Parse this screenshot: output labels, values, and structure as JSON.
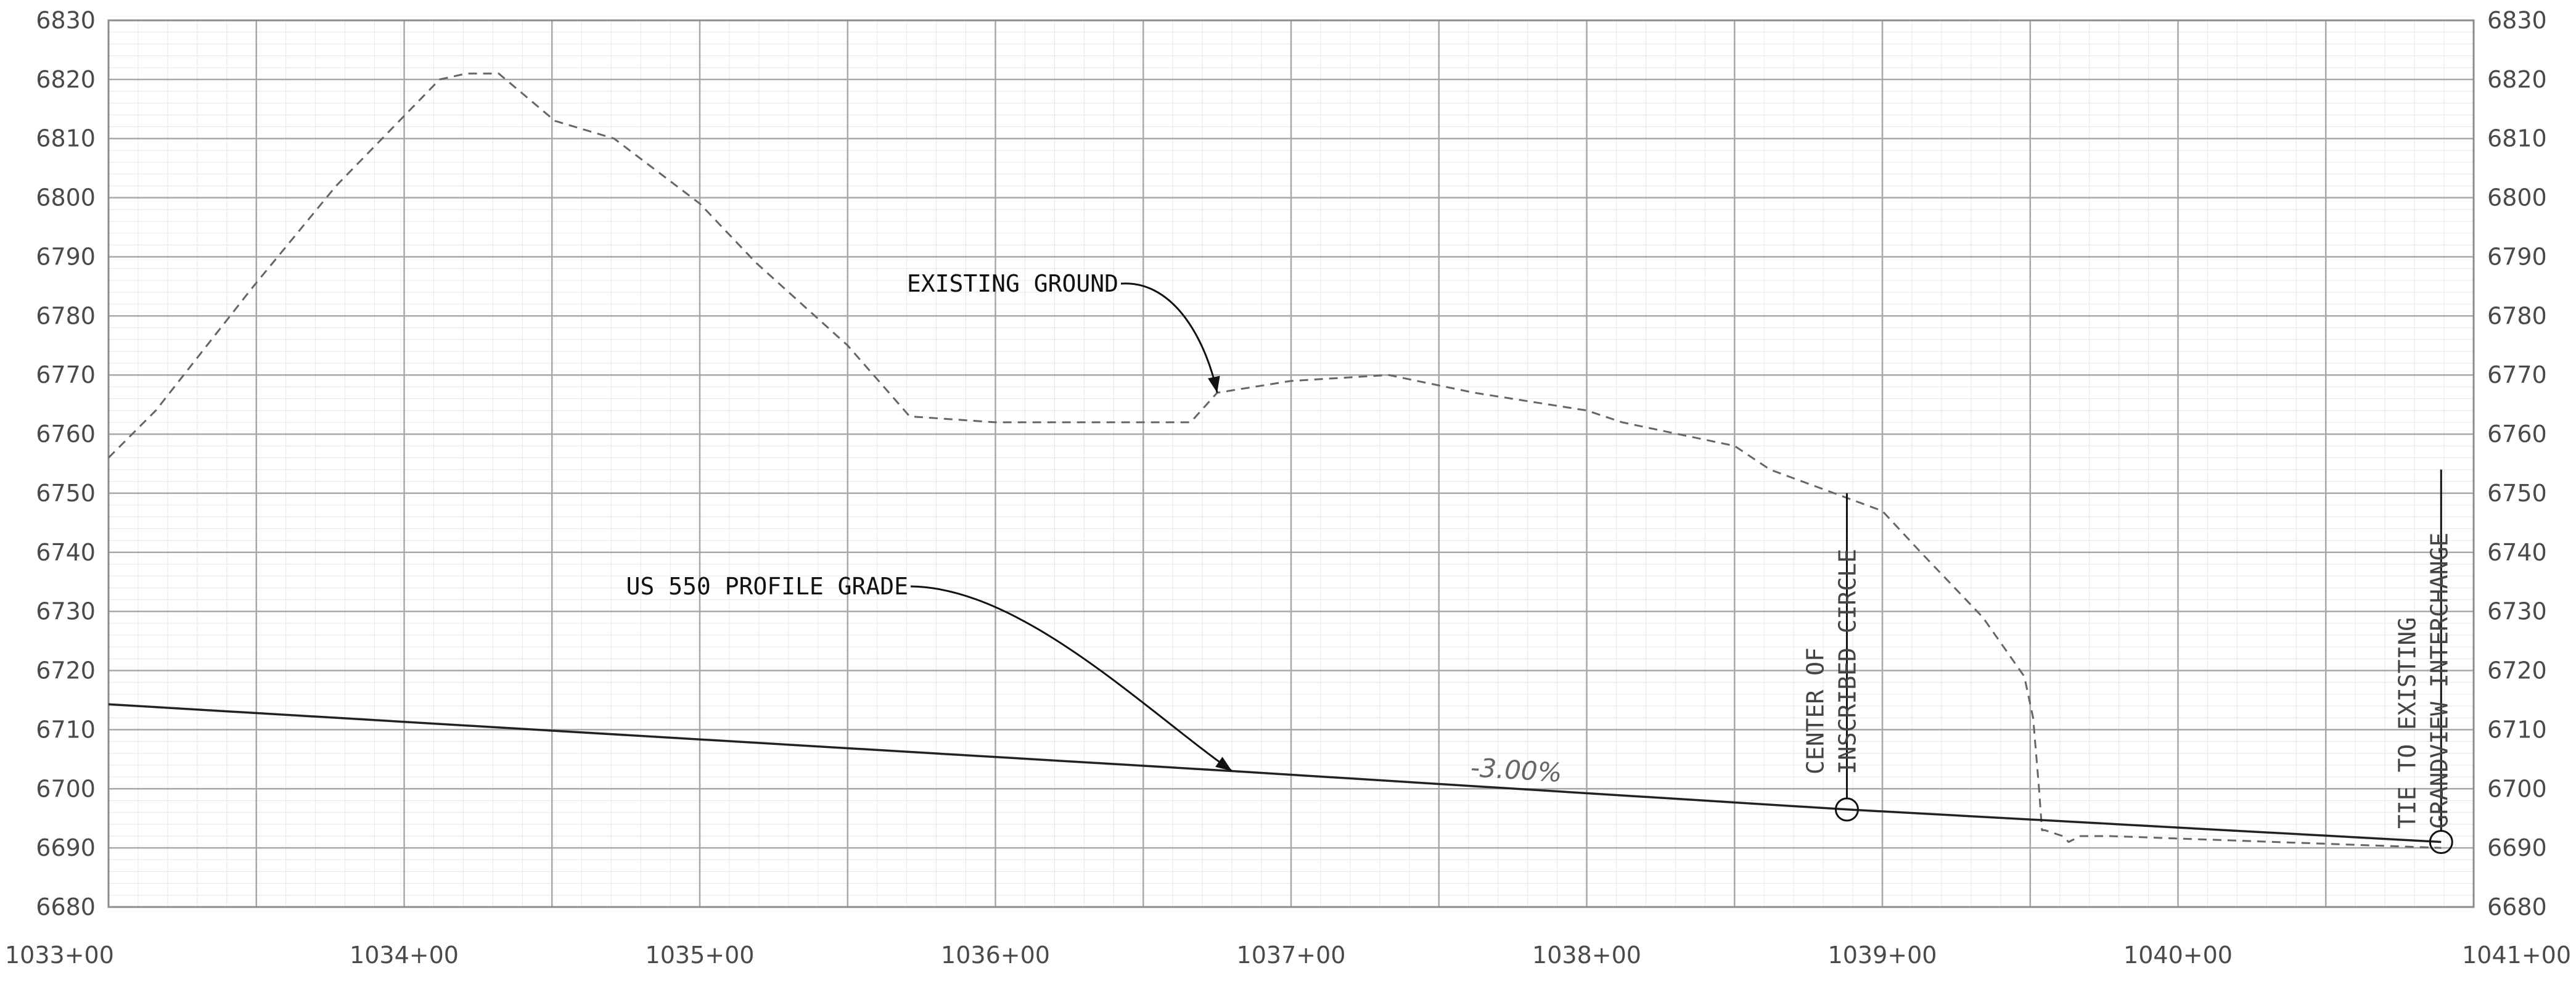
{
  "chart_data": {
    "type": "line",
    "xlim": [
      103300,
      104100
    ],
    "ylim": [
      6680,
      6830
    ],
    "y_ticks": [
      6680,
      6690,
      6700,
      6710,
      6720,
      6730,
      6740,
      6750,
      6760,
      6770,
      6780,
      6790,
      6800,
      6810,
      6820,
      6830
    ],
    "x_tick_labels": [
      {
        "station": 103300,
        "label": "1033+00"
      },
      {
        "station": 103400,
        "label": "1034+00"
      },
      {
        "station": 103500,
        "label": "1035+00"
      },
      {
        "station": 103600,
        "label": "1036+00"
      },
      {
        "station": 103700,
        "label": "1037+00"
      },
      {
        "station": 103800,
        "label": "1038+00"
      },
      {
        "station": 103900,
        "label": "1039+00"
      },
      {
        "station": 104000,
        "label": "1040+00"
      },
      {
        "station": 104100,
        "label": "1041+00"
      }
    ],
    "major_grid_x_step": 50,
    "minor_grid_x_step": 10,
    "minor_grid_y_step": 2,
    "grid": true,
    "series": [
      {
        "name": "EXISTING GROUND",
        "style": "dashed",
        "x": [
          103300,
          103316,
          103349,
          103377,
          103412,
          103421,
          103432,
          103451,
          103471,
          103500,
          103519,
          103550,
          103571,
          103600,
          103650,
          103666,
          103675,
          103700,
          103733,
          103762,
          103800,
          103812,
          103850,
          103862,
          103900,
          103913,
          103934,
          103948,
          103951,
          103953,
          103954,
          103955,
          103961,
          103963,
          103967,
          103971,
          103977,
          104089
        ],
        "y": [
          6756,
          6764,
          6785,
          6802,
          6820,
          6821,
          6821,
          6813,
          6810,
          6799,
          6789,
          6775,
          6763,
          6762,
          6762,
          6762,
          6767,
          6769,
          6770,
          6767,
          6764,
          6762,
          6758,
          6754,
          6747,
          6740,
          6729,
          6719,
          6712,
          6700,
          6693,
          6693,
          6692,
          6691,
          6692,
          6692,
          6692,
          6690
        ]
      },
      {
        "name": "US 550 PROFILE GRADE",
        "style": "solid",
        "x": [
          103300,
          103680,
          103888,
          104089
        ],
        "y": [
          6714.3,
          6703,
          6696.5,
          6691
        ]
      }
    ],
    "annotations": {
      "existing_ground": "EXISTING GROUND",
      "profile_grade": "US 550 PROFILE GRADE",
      "grade": "-3.00%",
      "center_line1": "CENTER OF",
      "center_line2": "INSCRIBED CIRCLE",
      "tie_line1": "TIE TO EXISTING",
      "tie_line2": "GRANDVIEW INTERCHANGE"
    },
    "points_of_interest": [
      {
        "name": "center-of-inscribed-circle",
        "x": 103888,
        "y": 6696.5,
        "marker_top_y": 6750
      },
      {
        "name": "tie-to-existing",
        "x": 104089,
        "y": 6691,
        "marker_top_y": 6754
      }
    ]
  },
  "colors": {
    "grid_minor": "#e6e6e6",
    "grid_major": "#a8a8a8",
    "frame": "#8c8c8c",
    "series": "#222222",
    "ground": "#666666"
  }
}
